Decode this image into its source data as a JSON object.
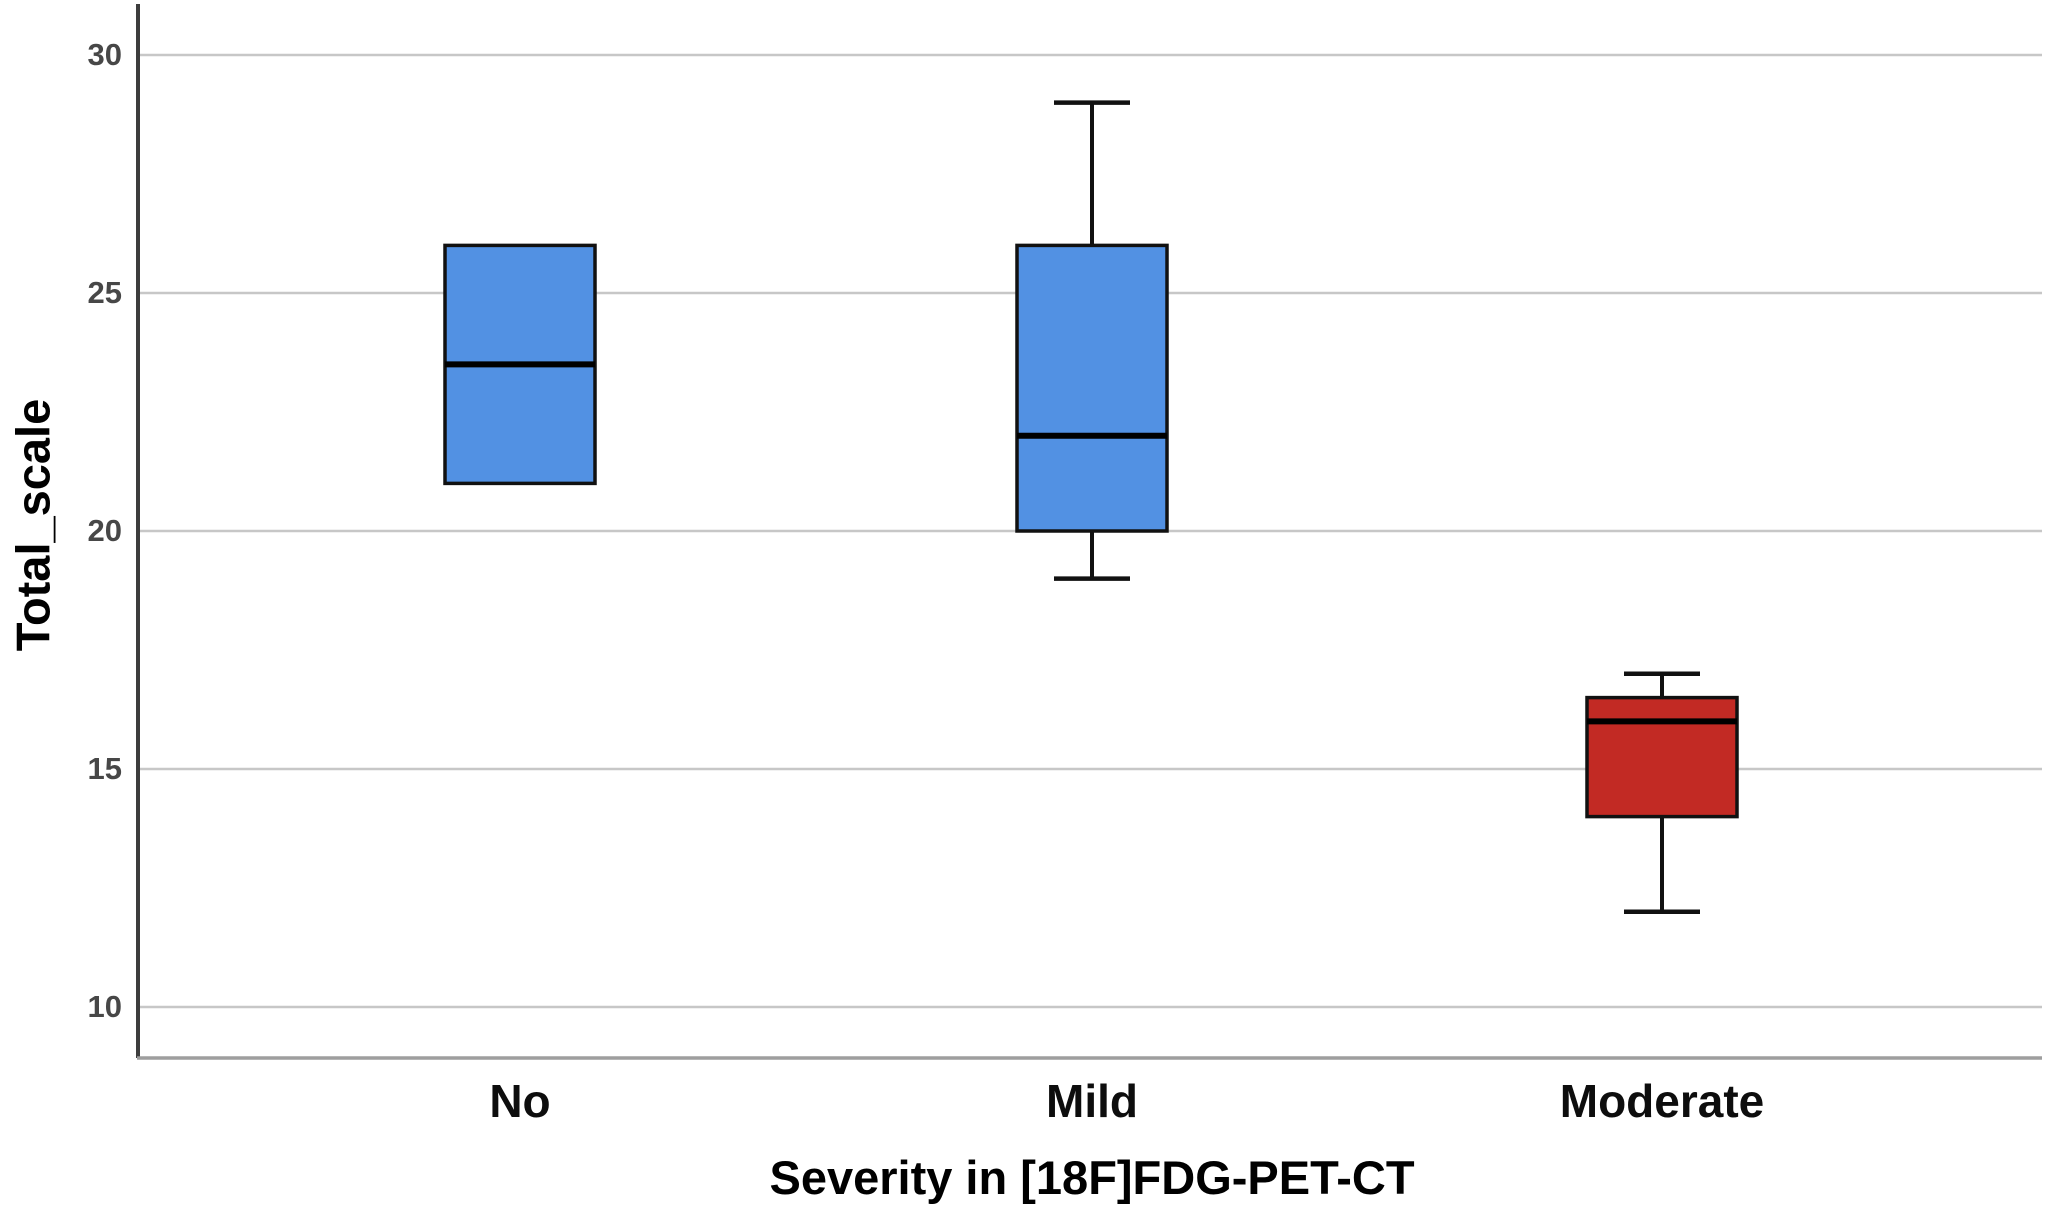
{
  "chart_data": {
    "type": "box",
    "title": "",
    "xlabel": "Severity in [18F]FDG-PET-CT",
    "ylabel": "Total_scale",
    "categories": [
      "No",
      "Mild",
      "Moderate"
    ],
    "yticks": [
      30,
      25,
      20,
      15,
      10
    ],
    "ytick_labels": [
      "30",
      "25",
      "20",
      "15",
      "10"
    ],
    "ylim": [
      8.9,
      31.0
    ],
    "grid": "horizontal-gridlines-at-each-ytick",
    "legend": "none",
    "series": [
      {
        "category": "No",
        "min": 21,
        "q1": 21,
        "median": 23.5,
        "q3": 26,
        "max": 26,
        "color": "#5291e3"
      },
      {
        "category": "Mild",
        "min": 19,
        "q1": 20,
        "median": 22,
        "q3": 26,
        "max": 29,
        "color": "#5291e3"
      },
      {
        "category": "Moderate",
        "min": 12,
        "q1": 14,
        "median": 16,
        "q3": 16.5,
        "max": 17,
        "color": "#c22a24"
      }
    ],
    "colors": {
      "blue_box": "#5291e3",
      "red_box": "#c22a24",
      "box_border": "#111111",
      "median_line": "#000000",
      "whisker": "#111111",
      "gridline": "#c7c7c7",
      "y_axis_line": "#3d3d3d",
      "x_axis_line": "#9e9e9e",
      "tick_label": "#474747",
      "category_label": "#0d0d0d"
    }
  }
}
